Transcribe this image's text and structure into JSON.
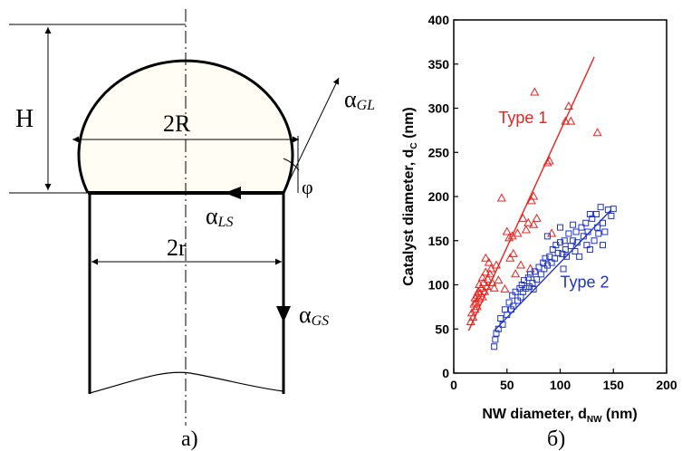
{
  "panel_a": {
    "caption": "a)",
    "labels": {
      "height": "H",
      "drop_diameter": "2R",
      "wire_diameter": "2r",
      "contact_angle": "φ",
      "alpha_symbol": "α",
      "sub_gl": "GL",
      "sub_ls": "LS",
      "sub_gs": "GS"
    }
  },
  "panel_b": {
    "caption": "б)",
    "colors": {
      "type1": "#e8231f",
      "type2": "#1e34c8"
    }
  },
  "chart_data": {
    "type": "scatter",
    "xlabel_main": "NW diameter, d",
    "xlabel_sub": "NW",
    "xlabel_unit": " (nm)",
    "ylabel_main": "Catalyst diameter, d",
    "ylabel_sub": "C",
    "ylabel_unit": " (nm)",
    "xlim": [
      0,
      200
    ],
    "ylim": [
      0,
      400
    ],
    "xticks": [
      0,
      50,
      100,
      150,
      200
    ],
    "yticks": [
      0,
      50,
      100,
      150,
      200,
      250,
      300,
      350,
      400
    ],
    "series": [
      {
        "name": "Type 1",
        "marker": "triangle",
        "color": "#e8231f",
        "fit": [
          [
            14,
            48
          ],
          [
            132,
            358
          ]
        ],
        "points": [
          [
            16,
            58
          ],
          [
            17,
            68
          ],
          [
            18,
            63
          ],
          [
            19,
            78
          ],
          [
            20,
            72
          ],
          [
            20,
            85
          ],
          [
            21,
            80
          ],
          [
            22,
            88
          ],
          [
            22,
            75
          ],
          [
            23,
            92
          ],
          [
            24,
            84
          ],
          [
            24,
            100
          ],
          [
            25,
            90
          ],
          [
            26,
            96
          ],
          [
            27,
            86
          ],
          [
            27,
            108
          ],
          [
            28,
            102
          ],
          [
            29,
            92
          ],
          [
            30,
            130
          ],
          [
            30,
            114
          ],
          [
            31,
            98
          ],
          [
            32,
            106
          ],
          [
            33,
            125
          ],
          [
            34,
            112
          ],
          [
            35,
            118
          ],
          [
            36,
            102
          ],
          [
            38,
            96
          ],
          [
            40,
            122
          ],
          [
            42,
            105
          ],
          [
            45,
            198
          ],
          [
            48,
            95
          ],
          [
            50,
            160
          ],
          [
            52,
            153
          ],
          [
            53,
            130
          ],
          [
            55,
            155
          ],
          [
            56,
            135
          ],
          [
            58,
            112
          ],
          [
            60,
            158
          ],
          [
            63,
            122
          ],
          [
            65,
            175
          ],
          [
            68,
            162
          ],
          [
            70,
            170
          ],
          [
            72,
            118
          ],
          [
            73,
            195
          ],
          [
            75,
            200
          ],
          [
            75,
            168
          ],
          [
            76,
            318
          ],
          [
            78,
            175
          ],
          [
            88,
            238
          ],
          [
            90,
            240
          ],
          [
            92,
            158
          ],
          [
            105,
            285
          ],
          [
            108,
            302
          ],
          [
            110,
            285
          ],
          [
            135,
            272
          ]
        ]
      },
      {
        "name": "Type 2",
        "marker": "square",
        "color": "#1e34c8",
        "fit": [
          [
            38,
            48
          ],
          [
            148,
            185
          ]
        ],
        "points": [
          [
            38,
            30
          ],
          [
            39,
            38
          ],
          [
            40,
            45
          ],
          [
            42,
            50
          ],
          [
            44,
            62
          ],
          [
            46,
            55
          ],
          [
            48,
            72
          ],
          [
            50,
            66
          ],
          [
            52,
            80
          ],
          [
            54,
            72
          ],
          [
            55,
            88
          ],
          [
            56,
            76
          ],
          [
            58,
            92
          ],
          [
            60,
            82
          ],
          [
            62,
            96
          ],
          [
            63,
            86
          ],
          [
            64,
            100
          ],
          [
            65,
            92
          ],
          [
            66,
            105
          ],
          [
            68,
            96
          ],
          [
            70,
            108
          ],
          [
            71,
            98
          ],
          [
            72,
            112
          ],
          [
            74,
            102
          ],
          [
            75,
            95
          ],
          [
            76,
            115
          ],
          [
            78,
            106
          ],
          [
            80,
            120
          ],
          [
            82,
            112
          ],
          [
            84,
            125
          ],
          [
            85,
            118
          ],
          [
            86,
            130
          ],
          [
            88,
            122
          ],
          [
            88,
            155
          ],
          [
            90,
            132
          ],
          [
            92,
            125
          ],
          [
            93,
            140
          ],
          [
            95,
            130
          ],
          [
            96,
            145
          ],
          [
            98,
            136
          ],
          [
            100,
            148
          ],
          [
            102,
            135
          ],
          [
            103,
            118
          ],
          [
            104,
            150
          ],
          [
            105,
            140
          ],
          [
            106,
            132
          ],
          [
            108,
            158
          ],
          [
            110,
            144
          ],
          [
            112,
            150
          ],
          [
            114,
            138
          ],
          [
            115,
            160
          ],
          [
            116,
            148
          ],
          [
            118,
            132
          ],
          [
            120,
            165
          ],
          [
            122,
            155
          ],
          [
            124,
            170
          ],
          [
            125,
            145
          ],
          [
            126,
            160
          ],
          [
            128,
            140
          ],
          [
            130,
            175
          ],
          [
            132,
            150
          ],
          [
            134,
            180
          ],
          [
            135,
            165
          ],
          [
            136,
            158
          ],
          [
            138,
            188
          ],
          [
            140,
            170
          ],
          [
            140,
            145
          ],
          [
            142,
            160
          ],
          [
            145,
            185
          ],
          [
            148,
            178
          ],
          [
            150,
            186
          ],
          [
            128,
            180
          ],
          [
            112,
            168
          ],
          [
            100,
            165
          ]
        ]
      }
    ],
    "annotations": [
      {
        "text": "Type 1",
        "color": "#e8231f",
        "x": 42,
        "y": 283
      },
      {
        "text": "Type 2",
        "color": "#1e34c8",
        "x": 100,
        "y": 97
      }
    ]
  }
}
